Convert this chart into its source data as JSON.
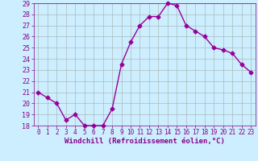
{
  "x": [
    0,
    1,
    2,
    3,
    4,
    5,
    6,
    7,
    8,
    9,
    10,
    11,
    12,
    13,
    14,
    15,
    16,
    17,
    18,
    19,
    20,
    21,
    22,
    23
  ],
  "y": [
    21,
    20.5,
    20,
    18.5,
    19,
    18,
    18,
    18,
    19.5,
    23.5,
    25.5,
    27,
    27.8,
    27.8,
    29,
    28.8,
    27,
    26.5,
    26,
    25,
    24.8,
    24.5,
    23.5,
    22.8
  ],
  "line_color": "#990099",
  "marker": "D",
  "marker_size": 2.5,
  "bg_color": "#cceeff",
  "grid_color": "#aabbbb",
  "xlabel": "Windchill (Refroidissement éolien,°C)",
  "ylim": [
    18,
    29
  ],
  "xlim": [
    -0.5,
    23.5
  ],
  "yticks": [
    18,
    19,
    20,
    21,
    22,
    23,
    24,
    25,
    26,
    27,
    28,
    29
  ],
  "xticks": [
    0,
    1,
    2,
    3,
    4,
    5,
    6,
    7,
    8,
    9,
    10,
    11,
    12,
    13,
    14,
    15,
    16,
    17,
    18,
    19,
    20,
    21,
    22,
    23
  ],
  "xlabel_color": "#880088",
  "xlabel_fontsize": 6.5,
  "ytick_fontsize": 6,
  "xtick_fontsize": 5.5,
  "tick_color": "#880088",
  "linewidth": 1.0
}
